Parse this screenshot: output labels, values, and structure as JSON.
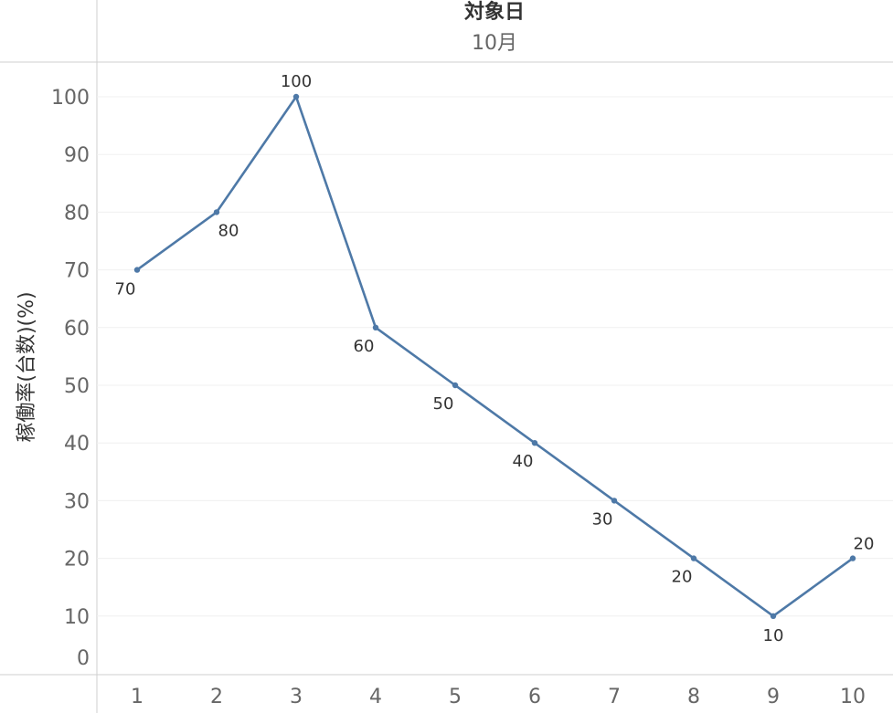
{
  "chart_data": {
    "type": "line",
    "header_title": "対象日",
    "header_subtitle": "10月",
    "xlabel": "",
    "ylabel": "稼働率(台数)(%)",
    "categories": [
      "1",
      "2",
      "3",
      "4",
      "5",
      "6",
      "7",
      "8",
      "9",
      "10"
    ],
    "series": [
      {
        "values": [
          70,
          80,
          100,
          60,
          50,
          40,
          30,
          20,
          10,
          20
        ]
      }
    ],
    "yticks": [
      0,
      10,
      20,
      30,
      40,
      50,
      60,
      70,
      80,
      90,
      100
    ],
    "ylim": [
      0,
      100
    ],
    "grid": true,
    "data_labels": true,
    "line_color": "#4e79a7"
  }
}
